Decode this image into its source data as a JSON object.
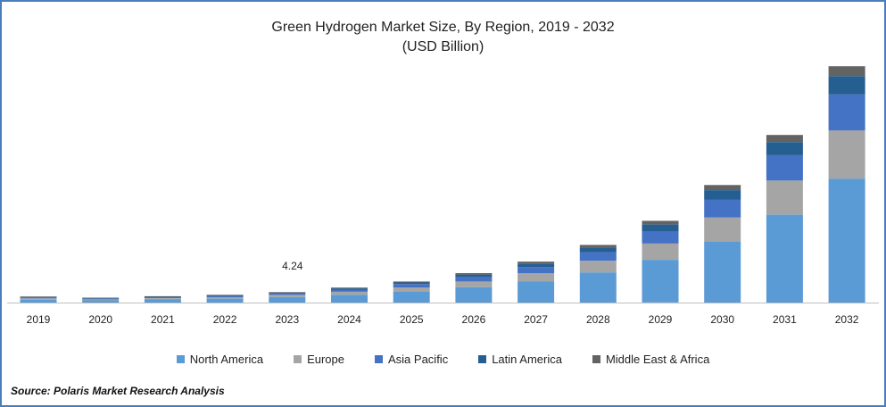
{
  "header": {
    "title": "Green Hydrogen Market Size, By Region, 2019 - 2032",
    "subtitle": "(USD Billion)"
  },
  "source": "Source: Polaris Market Research Analysis",
  "chart_data": {
    "type": "bar",
    "stacked": true,
    "title": "Green Hydrogen Market Size, By Region, 2019 - 2032",
    "subtitle": "(USD Billion)",
    "categories": [
      "2019",
      "2020",
      "2021",
      "2022",
      "2023",
      "2024",
      "2025",
      "2026",
      "2027",
      "2028",
      "2029",
      "2030",
      "2031",
      "2032"
    ],
    "series": [
      {
        "name": "North America",
        "color": "#5b9bd5",
        "values": [
          1.2,
          0.9,
          1.3,
          1.6,
          2.3,
          3.2,
          4.5,
          6.3,
          8.7,
          12.3,
          17.4,
          25.0,
          35.8,
          50.5
        ]
      },
      {
        "name": "Europe",
        "color": "#a5a5a5",
        "values": [
          0.5,
          0.4,
          0.5,
          0.6,
          0.8,
          1.2,
          1.7,
          2.3,
          3.3,
          4.7,
          6.7,
          9.7,
          13.9,
          19.6
        ]
      },
      {
        "name": "Asia Pacific",
        "color": "#4472c4",
        "values": [
          0.4,
          0.3,
          0.4,
          0.5,
          0.6,
          0.9,
          1.3,
          1.8,
          2.5,
          3.5,
          5.0,
          7.3,
          10.4,
          14.7
        ]
      },
      {
        "name": "Latin America",
        "color": "#255e91",
        "values": [
          0.2,
          0.2,
          0.2,
          0.3,
          0.3,
          0.5,
          0.7,
          1.0,
          1.4,
          1.9,
          2.7,
          3.8,
          5.3,
          7.5
        ]
      },
      {
        "name": "Middle East & Africa",
        "color": "#636363",
        "values": [
          0.2,
          0.2,
          0.2,
          0.2,
          0.24,
          0.3,
          0.4,
          0.6,
          0.8,
          1.1,
          1.5,
          2.1,
          2.9,
          4.0
        ]
      }
    ],
    "annotations": [
      {
        "category": "2023",
        "text": "4.24"
      }
    ],
    "ylim": [
      0,
      100
    ],
    "y_axis_shown": false,
    "grid": false,
    "legend_position": "bottom"
  }
}
